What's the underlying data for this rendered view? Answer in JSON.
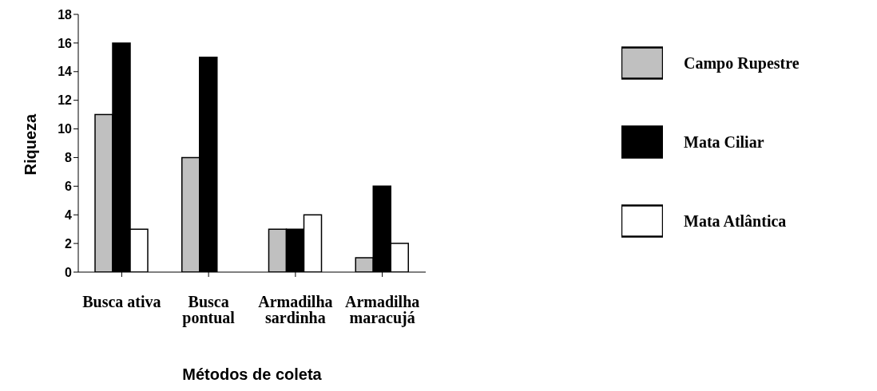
{
  "chart_data": {
    "type": "bar",
    "xlabel": "Métodos de coleta",
    "ylabel": "Riqueza",
    "categories": [
      "Busca ativa",
      "Busca pontual",
      "Armadilha sardinha",
      "Armadilha maracujá"
    ],
    "series": [
      {
        "name": "Campo Rupestre",
        "color": "#c0c0c0",
        "values": [
          11,
          8,
          3,
          1
        ]
      },
      {
        "name": "Mata Ciliar",
        "color": "#000000",
        "values": [
          16,
          15,
          3,
          6
        ]
      },
      {
        "name": "Mata Atlântica",
        "color": "#ffffff",
        "values": [
          3,
          0,
          4,
          2
        ]
      }
    ],
    "ylim": [
      0,
      18
    ],
    "yticks": [
      0,
      2,
      4,
      6,
      8,
      10,
      12,
      14,
      16,
      18
    ],
    "grid": false,
    "legend": "right"
  }
}
